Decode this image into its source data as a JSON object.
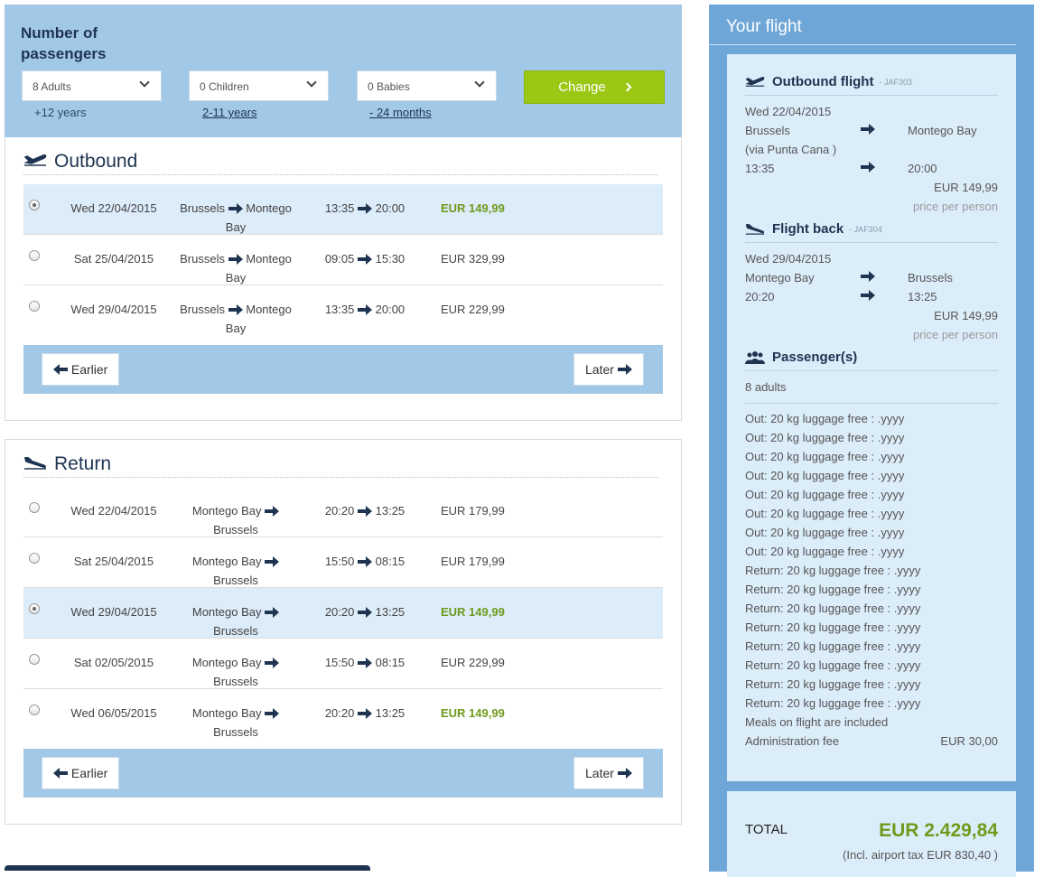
{
  "passengers": {
    "title": "Number of passengers",
    "adults": "8 Adults",
    "children": "0 Children",
    "babies": "0 Babies",
    "adults_sub": "+12 years",
    "children_sub": "2-11 years",
    "babies_sub": "- 24 months",
    "change_label": "Change"
  },
  "outbound": {
    "title": "Outbound",
    "rows": [
      {
        "date": "Wed 22/04/2015",
        "from": "Brussels",
        "to": "Montego Bay",
        "dep": "13:35",
        "arr": "20:00",
        "price": "EUR 149,99",
        "selected": true,
        "best": true
      },
      {
        "date": "Sat 25/04/2015",
        "from": "Brussels",
        "to": "Montego Bay",
        "dep": "09:05",
        "arr": "15:30",
        "price": "EUR 329,99",
        "selected": false,
        "best": false
      },
      {
        "date": "Wed 29/04/2015",
        "from": "Brussels",
        "to": "Montego Bay",
        "dep": "13:35",
        "arr": "20:00",
        "price": "EUR 229,99",
        "selected": false,
        "best": false
      }
    ],
    "earlier": "Earlier",
    "later": "Later"
  },
  "return": {
    "title": "Return",
    "rows": [
      {
        "date": "Wed 22/04/2015",
        "from": "Montego Bay",
        "to": "Brussels",
        "dep": "20:20",
        "arr": "13:25",
        "price": "EUR 179,99",
        "selected": false,
        "best": false
      },
      {
        "date": "Sat 25/04/2015",
        "from": "Montego Bay",
        "to": "Brussels",
        "dep": "15:50",
        "arr": "08:15",
        "price": "EUR 179,99",
        "selected": false,
        "best": false
      },
      {
        "date": "Wed 29/04/2015",
        "from": "Montego Bay",
        "to": "Brussels",
        "dep": "20:20",
        "arr": "13:25",
        "price": "EUR 149,99",
        "selected": true,
        "best": true
      },
      {
        "date": "Sat 02/05/2015",
        "from": "Montego Bay",
        "to": "Brussels",
        "dep": "15:50",
        "arr": "08:15",
        "price": "EUR 229,99",
        "selected": false,
        "best": false
      },
      {
        "date": "Wed 06/05/2015",
        "from": "Montego Bay",
        "to": "Brussels",
        "dep": "20:20",
        "arr": "13:25",
        "price": "EUR 149,99",
        "selected": false,
        "best": true
      }
    ],
    "earlier": "Earlier",
    "later": "Later"
  },
  "summary": {
    "title": "Your flight",
    "outbound": {
      "heading": "Outbound flight",
      "code": "- JAF303",
      "date": "Wed 22/04/2015",
      "from": "Brussels",
      "via": "(via Punta Cana )",
      "to": "Montego Bay",
      "dep": "13:35",
      "arr": "20:00",
      "price": "EUR 149,99",
      "price_note": "price per person"
    },
    "back": {
      "heading": "Flight back",
      "code": "- JAF304",
      "date": "Wed 29/04/2015",
      "from": "Montego Bay",
      "to": "Brussels",
      "dep": "20:20",
      "arr": "13:25",
      "price": "EUR 149,99",
      "price_note": "price per person"
    },
    "passengers_heading": "Passenger(s)",
    "passengers_count": "8 adults",
    "extras": [
      "Out: 20 kg luggage free : .yyyy",
      "Out: 20 kg luggage free : .yyyy",
      "Out: 20 kg luggage free : .yyyy",
      "Out: 20 kg luggage free : .yyyy",
      "Out: 20 kg luggage free : .yyyy",
      "Out: 20 kg luggage free : .yyyy",
      "Out: 20 kg luggage free : .yyyy",
      "Out: 20 kg luggage free : .yyyy",
      "Return: 20 kg luggage free : .yyyy",
      "Return: 20 kg luggage free : .yyyy",
      "Return: 20 kg luggage free : .yyyy",
      "Return: 20 kg luggage free : .yyyy",
      "Return: 20 kg luggage free : .yyyy",
      "Return: 20 kg luggage free : .yyyy",
      "Return: 20 kg luggage free : .yyyy",
      "Return: 20 kg luggage free : .yyyy",
      "Meals on flight are included"
    ],
    "admin_label": "Administration fee",
    "admin_value": "EUR 30,00",
    "total_label": "TOTAL",
    "total_value": "EUR 2.429,84",
    "tax_note": "(Incl. airport tax EUR 830,40 )"
  }
}
